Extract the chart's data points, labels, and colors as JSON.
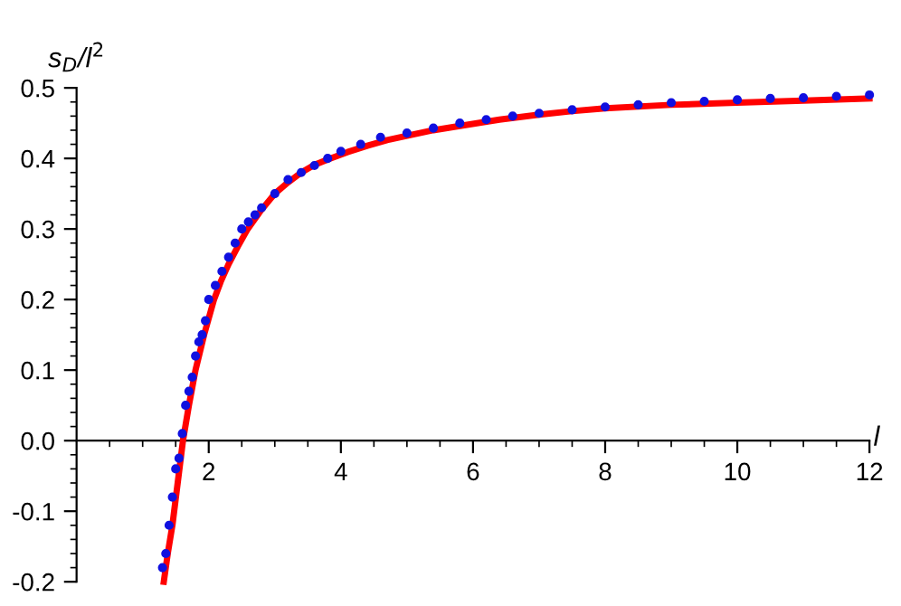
{
  "chart_data": {
    "type": "scatter",
    "xlabel": "l",
    "ylabel": "s$_{D}$/l$^{2}$",
    "xlim": [
      0,
      12
    ],
    "ylim": [
      -0.2,
      0.5
    ],
    "xticks": [
      {
        "value": 0.5,
        "label": null
      },
      {
        "value": 1,
        "label": null
      },
      {
        "value": 1.5,
        "label": null
      },
      2,
      {
        "value": 2.5,
        "label": null
      },
      {
        "value": 3,
        "label": null
      },
      {
        "value": 3.5,
        "label": null
      },
      4,
      {
        "value": 4.5,
        "label": null
      },
      {
        "value": 5,
        "label": null
      },
      {
        "value": 5.5,
        "label": null
      },
      6,
      {
        "value": 6.5,
        "label": null
      },
      {
        "value": 7,
        "label": null
      },
      {
        "value": 7.5,
        "label": null
      },
      8,
      {
        "value": 8.5,
        "label": null
      },
      {
        "value": 9,
        "label": null
      },
      {
        "value": 9.5,
        "label": null
      },
      10,
      {
        "value": 10.5,
        "label": null
      },
      {
        "value": 11,
        "label": null
      },
      {
        "value": 11.5,
        "label": null
      },
      12
    ],
    "yticks": [
      -0.2,
      {
        "value": -0.18,
        "label": null
      },
      {
        "value": -0.16,
        "label": null
      },
      {
        "value": -0.14,
        "label": null
      },
      {
        "value": -0.12,
        "label": null
      },
      -0.1,
      {
        "value": -0.08,
        "label": null
      },
      {
        "value": -0.06,
        "label": null
      },
      {
        "value": -0.04,
        "label": null
      },
      {
        "value": -0.02,
        "label": null
      },
      {
        "value": 0,
        "label": "0.0"
      },
      {
        "value": 0.02,
        "label": null
      },
      {
        "value": 0.04,
        "label": null
      },
      {
        "value": 0.06,
        "label": null
      },
      {
        "value": 0.08,
        "label": null
      },
      0.1,
      {
        "value": 0.12,
        "label": null
      },
      {
        "value": 0.14,
        "label": null
      },
      {
        "value": 0.16,
        "label": null
      },
      {
        "value": 0.18,
        "label": null
      },
      0.2,
      {
        "value": 0.22,
        "label": null
      },
      {
        "value": 0.24,
        "label": null
      },
      {
        "value": 0.26,
        "label": null
      },
      {
        "value": 0.28,
        "label": null
      },
      0.3,
      {
        "value": 0.32,
        "label": null
      },
      {
        "value": 0.34,
        "label": null
      },
      {
        "value": 0.36,
        "label": null
      },
      {
        "value": 0.38,
        "label": null
      },
      0.4,
      {
        "value": 0.42,
        "label": null
      },
      {
        "value": 0.44,
        "label": null
      },
      {
        "value": 0.46,
        "label": null
      },
      {
        "value": 0.48,
        "label": null
      },
      0.5
    ],
    "grid": false,
    "series": [
      {
        "color": "#1010e0",
        "marker": "circle",
        "x": [
          1.3,
          1.35,
          1.4,
          1.45,
          1.5,
          1.55,
          1.6,
          1.65,
          1.7,
          1.75,
          1.8,
          1.85,
          1.9,
          1.95,
          2.0,
          2.1,
          2.2,
          2.3,
          2.4,
          2.5,
          2.6,
          2.7,
          2.8,
          3.0,
          3.2,
          3.4,
          3.6,
          3.8,
          4.0,
          4.3,
          4.6,
          5.0,
          5.4,
          5.8,
          6.2,
          6.6,
          7.0,
          7.5,
          8.0,
          8.5,
          9.0,
          9.5,
          10.0,
          10.5,
          11.0,
          11.5,
          12.0
        ],
        "values": [
          -0.18,
          -0.16,
          -0.12,
          -0.08,
          -0.04,
          -0.025,
          0.01,
          0.05,
          0.07,
          0.09,
          0.12,
          0.14,
          0.15,
          0.17,
          0.2,
          0.22,
          0.24,
          0.26,
          0.28,
          0.3,
          0.31,
          0.32,
          0.33,
          0.35,
          0.37,
          0.38,
          0.39,
          0.4,
          0.41,
          0.42,
          0.43,
          0.436,
          0.443,
          0.45,
          0.455,
          0.46,
          0.464,
          0.469,
          0.473,
          0.476,
          0.479,
          0.481,
          0.483,
          0.485,
          0.486,
          0.488,
          0.49
        ]
      },
      {
        "type": "line",
        "color": "#ff0000",
        "line_style": "solid",
        "x": [
          1.32,
          1.38,
          1.45,
          1.53,
          1.61,
          1.7,
          1.8,
          1.93,
          2.08,
          2.18,
          2.3,
          2.44,
          2.59,
          2.78,
          3.0,
          3.2,
          3.4,
          3.6,
          3.84,
          4.1,
          4.4,
          4.7,
          5.0,
          5.4,
          5.8,
          6.4,
          7.0,
          7.5,
          8.0,
          9.0,
          10.0,
          11.0,
          12.0
        ],
        "values": [
          -0.2,
          -0.16,
          -0.12,
          -0.06,
          0.0,
          0.05,
          0.1,
          0.15,
          0.2,
          0.225,
          0.25,
          0.275,
          0.3,
          0.325,
          0.35,
          0.366,
          0.38,
          0.391,
          0.4,
          0.409,
          0.418,
          0.426,
          0.432,
          0.44,
          0.446,
          0.455,
          0.462,
          0.467,
          0.471,
          0.476,
          0.479,
          0.482,
          0.485
        ]
      }
    ]
  }
}
